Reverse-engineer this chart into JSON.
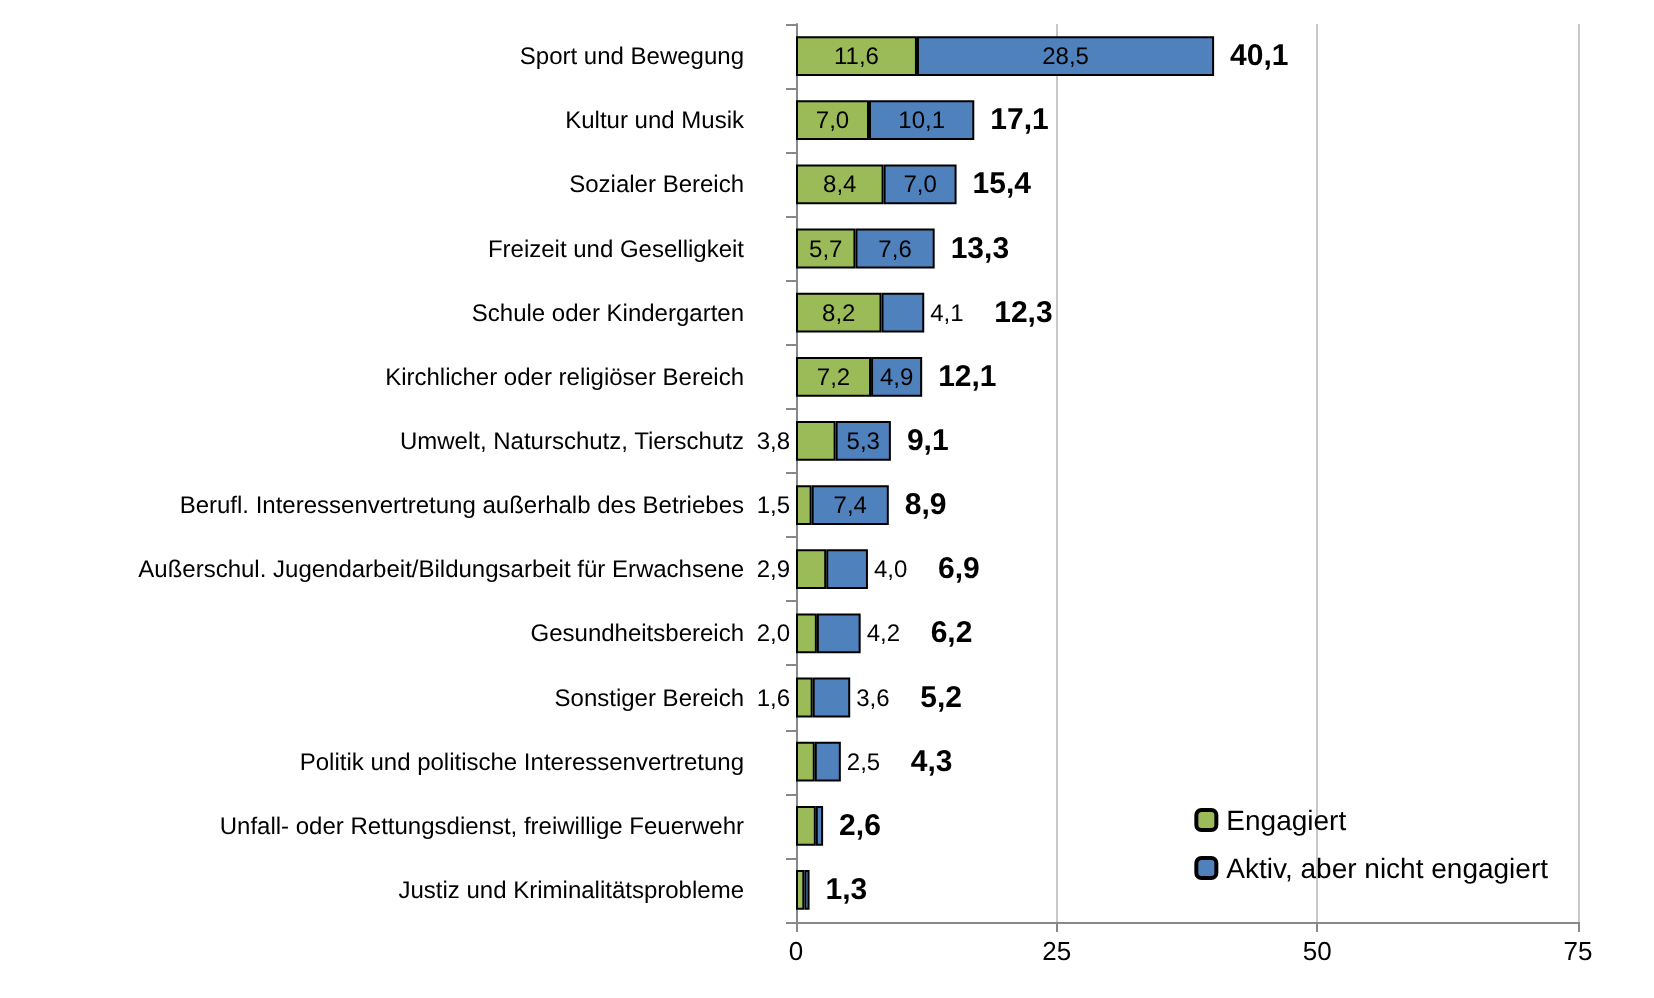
{
  "chart_data": {
    "type": "bar",
    "orientation": "horizontal",
    "stacked": true,
    "categories": [
      "Sport und Bewegung",
      "Kultur und Musik",
      "Sozialer Bereich",
      "Freizeit und Geselligkeit",
      "Schule oder Kindergarten",
      "Kirchlicher oder religiöser Bereich",
      "Umwelt, Naturschutz, Tierschutz",
      "Berufl. Interessenvertretung außerhalb des Betriebes",
      "Außerschul. Jugendarbeit/Bildungsarbeit für Erwachsene",
      "Gesundheitsbereich",
      "Sonstiger Bereich",
      "Politik und politische Interessenvertretung",
      "Unfall- oder Rettungsdienst, freiwillige Feuerwehr",
      "Justiz und Kriminalitätsprobleme"
    ],
    "series": [
      {
        "name": "Engagiert",
        "color": "#9bbb59",
        "values": [
          11.6,
          7.0,
          8.4,
          5.7,
          8.2,
          7.2,
          3.8,
          1.5,
          2.9,
          2.0,
          1.6,
          1.8,
          1.9,
          0.8
        ],
        "value_labels": [
          "11,6",
          "7,0",
          "8,4",
          "5,7",
          "8,2",
          "7,2",
          "3,8",
          "1,5",
          "2,9",
          "2,0",
          "1,6",
          null,
          null,
          null
        ]
      },
      {
        "name": "Aktiv, aber nicht engagiert",
        "color": "#4f81bd",
        "values": [
          28.5,
          10.1,
          7.0,
          7.6,
          4.1,
          4.9,
          5.3,
          7.4,
          4.0,
          4.2,
          3.6,
          2.5,
          0.7,
          0.5
        ],
        "value_labels": [
          "28,5",
          "10,1",
          "7,0",
          "7,6",
          "4,1",
          "4,9",
          "5,3",
          "7,4",
          "4,0",
          "4,2",
          "3,6",
          "2,5",
          null,
          null
        ]
      }
    ],
    "totals": [
      "40,1",
      "17,1",
      "15,4",
      "13,3",
      "12,3",
      "12,1",
      "9,1",
      "8,9",
      "6,9",
      "6,2",
      "5,2",
      "4,3",
      "2,6",
      "1,3"
    ],
    "xlim": [
      0,
      75
    ],
    "xticks": [
      0,
      25,
      50,
      75
    ],
    "grid": "x",
    "legend": "bottom right"
  }
}
